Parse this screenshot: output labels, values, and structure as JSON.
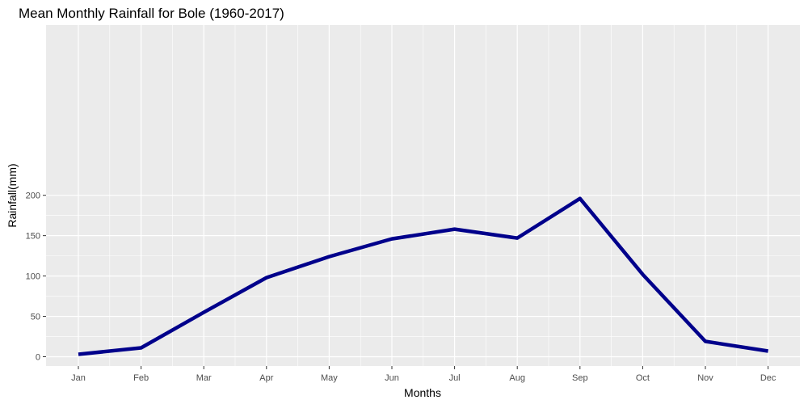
{
  "chart_data": {
    "type": "line",
    "title": "Mean Monthly Rainfall for Bole (1960-2017)",
    "xlabel": "Months",
    "ylabel": "Rainfall(mm)",
    "categories": [
      "Jan",
      "Feb",
      "Mar",
      "Apr",
      "May",
      "Jun",
      "Jul",
      "Aug",
      "Sep",
      "Oct",
      "Nov",
      "Dec"
    ],
    "series": [
      {
        "values": [
          3,
          11,
          55,
          98,
          124,
          146,
          158,
          147,
          196,
          102,
          19,
          7
        ],
        "color": "#00008B"
      }
    ],
    "yticks": [
      0,
      50,
      100,
      150,
      200
    ],
    "ylim": [
      -6.5,
      205.5
    ],
    "grid": true,
    "panel_background": "#EBEBEB",
    "grid_color": "#FFFFFF"
  }
}
